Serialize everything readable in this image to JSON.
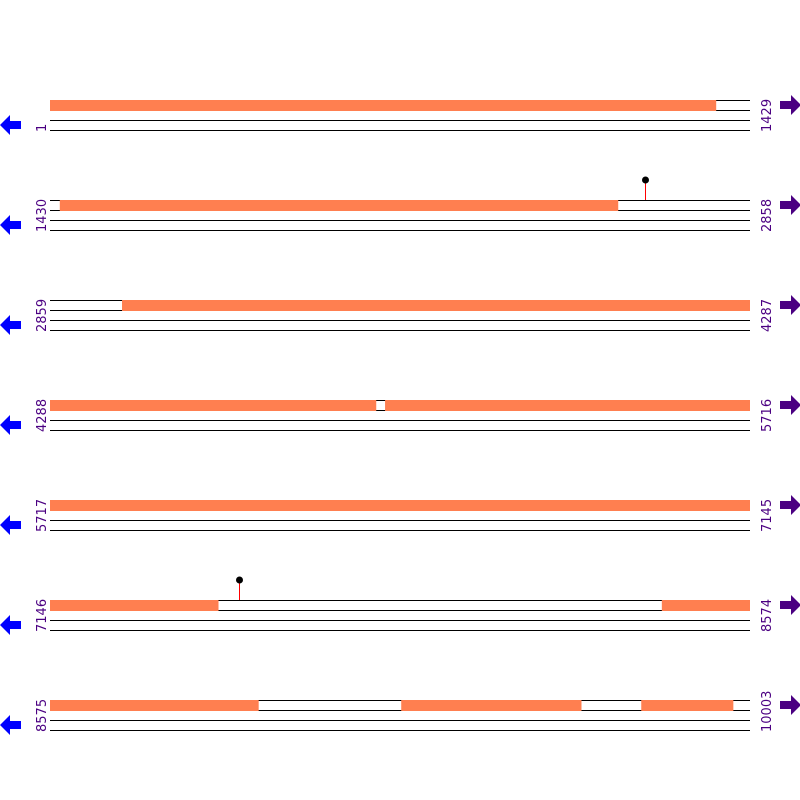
{
  "sequence": {
    "length": 10003,
    "row_ranges": [
      {
        "start": 1,
        "end": 1429
      },
      {
        "start": 1430,
        "end": 2858
      },
      {
        "start": 2859,
        "end": 4287
      },
      {
        "start": 4288,
        "end": 5716
      },
      {
        "start": 5717,
        "end": 7145
      },
      {
        "start": 7146,
        "end": 8574
      },
      {
        "start": 8575,
        "end": 10003
      }
    ],
    "start_labels": [
      "1",
      "1430",
      "2859",
      "4288",
      "5717",
      "7146",
      "8575"
    ],
    "end_labels": [
      "1429",
      "2858",
      "4287",
      "5716",
      "7145",
      "8574",
      "10003"
    ],
    "features": [
      {
        "start": 1,
        "end": 1360
      },
      {
        "start": 1450,
        "end": 2589
      },
      {
        "start": 3006,
        "end": 4953
      },
      {
        "start": 4972,
        "end": 7489
      },
      {
        "start": 8395,
        "end": 9000
      },
      {
        "start": 9292,
        "end": 9659
      },
      {
        "start": 9782,
        "end": 9969
      }
    ],
    "sites": [
      2644,
      7532
    ]
  },
  "colors": {
    "feature": "#ff7f50",
    "label": "#4b0082",
    "reverse_arrow": "#0000ff",
    "forward_arrow": "#4b0082",
    "site_stem": "#ff0000",
    "line": "#000000"
  },
  "icons": {
    "reverse": "arrow-left-icon",
    "forward": "arrow-right-icon"
  }
}
